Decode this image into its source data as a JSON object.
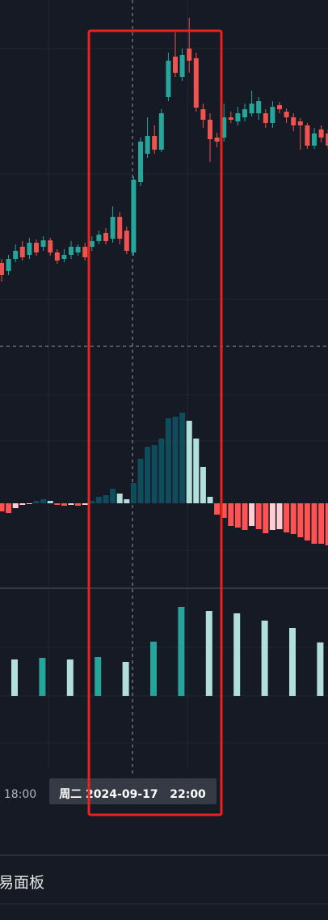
{
  "chart_data": {
    "type": "candlestick",
    "time_label": "18:00",
    "crosshair_label": "周二 2024-09-17   22:00",
    "up_color": "#26a69a",
    "down_color": "#ef5350",
    "ylim": [
      0,
      420
    ],
    "open": [
      95,
      85,
      100,
      115,
      105,
      120,
      115,
      123,
      108,
      100,
      105,
      108,
      115,
      115,
      122,
      132,
      125,
      152,
      135,
      108,
      195,
      230,
      252,
      235,
      300,
      350,
      325,
      360,
      348,
      285,
      272,
      250,
      250,
      275,
      270,
      275,
      280,
      280,
      280,
      268,
      290,
      282,
      275,
      270,
      265,
      240,
      260,
      255
    ],
    "close": [
      80,
      100,
      110,
      102,
      120,
      108,
      123,
      108,
      98,
      105,
      115,
      115,
      102,
      122,
      130,
      122,
      152,
      125,
      110,
      198,
      245,
      252,
      235,
      280,
      345,
      330,
      352,
      345,
      287,
      272,
      248,
      245,
      275,
      272,
      280,
      285,
      292,
      295,
      268,
      288,
      285,
      275,
      265,
      265,
      240,
      255,
      250,
      240
    ],
    "high": [
      100,
      105,
      118,
      122,
      126,
      124,
      128,
      126,
      112,
      112,
      122,
      118,
      120,
      128,
      135,
      138,
      165,
      158,
      140,
      202,
      250,
      275,
      265,
      285,
      355,
      380,
      360,
      398,
      355,
      292,
      280,
      256,
      292,
      282,
      288,
      292,
      308,
      300,
      285,
      295,
      294,
      286,
      280,
      274,
      268,
      262,
      265,
      260
    ],
    "low": [
      72,
      80,
      96,
      98,
      100,
      104,
      110,
      104,
      94,
      96,
      100,
      104,
      98,
      110,
      118,
      118,
      120,
      118,
      106,
      104,
      190,
      225,
      230,
      232,
      295,
      325,
      320,
      330,
      282,
      262,
      220,
      238,
      245,
      268,
      265,
      270,
      276,
      272,
      262,
      262,
      280,
      268,
      258,
      235,
      236,
      236,
      244,
      236
    ],
    "macd": {
      "ylim": [
        -100,
        150
      ],
      "values": [
        -10,
        -12,
        -6,
        -2,
        -1,
        3,
        5,
        3,
        -2,
        -3,
        -2,
        -3,
        -2,
        3,
        8,
        10,
        18,
        12,
        5,
        25,
        55,
        70,
        72,
        80,
        105,
        107,
        112,
        102,
        80,
        45,
        8,
        -14,
        -18,
        -28,
        -30,
        -33,
        -28,
        -32,
        -37,
        -33,
        -32,
        -36,
        -38,
        -42,
        -46,
        -50,
        -50,
        -52
      ],
      "colors": {
        "rise_pos": "#0f4c5c",
        "fall_pos": "#b2dfdb",
        "fall_neg": "#ff5252",
        "rise_neg": "#ffcdd2"
      }
    },
    "volume": {
      "ylim": [
        0,
        150
      ],
      "values": [
        45,
        47,
        45,
        48,
        42,
        67,
        110,
        105,
        102,
        93,
        84,
        66
      ],
      "colors": [
        "#b2dfdb",
        "#26a69a",
        "#b2dfdb",
        "#26a69a",
        "#b2dfdb",
        "#26a69a",
        "#26a69a",
        "#b2dfdb",
        "#b2dfdb",
        "#b2dfdb",
        "#b2dfdb",
        "#b2dfdb"
      ]
    }
  },
  "footer": {
    "panel": "易面板"
  }
}
